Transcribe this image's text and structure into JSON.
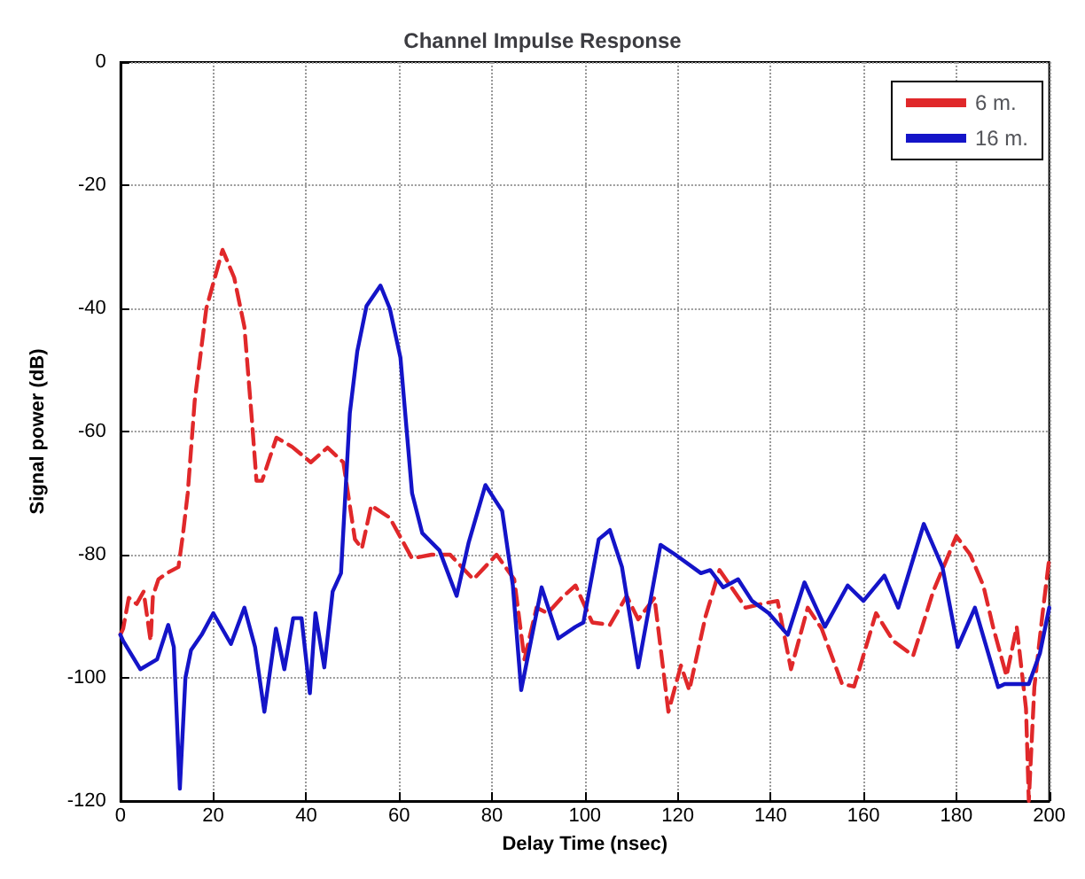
{
  "chart_data": {
    "type": "line",
    "title": "Channel Impulse Response",
    "xlabel": "Delay Time (nsec)",
    "ylabel": "Signal power (dB)",
    "xlim": [
      0,
      200
    ],
    "xticks": [
      0,
      20,
      40,
      60,
      80,
      100,
      120,
      140,
      160,
      180,
      200
    ],
    "ylim": [
      -120,
      0
    ],
    "yticks": [
      -120,
      -100,
      -80,
      -60,
      -40,
      -20,
      0
    ],
    "grid": true,
    "legend": "top right",
    "marker": "none",
    "series": [
      {
        "name": "6 m.",
        "color": "#e0282a",
        "line_style": "dashed",
        "x": [
          0,
          0.6,
          1.8,
          3.5,
          5,
          6.5,
          7,
          8.2,
          10,
          12.5,
          13.5,
          14.5,
          16,
          18.5,
          22,
          24.5,
          26.7,
          28.3,
          29.3,
          30.5,
          33.6,
          37,
          41,
          44.6,
          48,
          50.5,
          52,
          54,
          58,
          62.8,
          67,
          71,
          76,
          81,
          84.8,
          87,
          89.6,
          92,
          95,
          98,
          101.6,
          105.4,
          109,
          111.5,
          115,
          118,
          120.7,
          122.5,
          126,
          129,
          134.6,
          138,
          141.5,
          144.4,
          148,
          151,
          155.4,
          158,
          162.7,
          166.4,
          170.7,
          175,
          180,
          183,
          185.8,
          188,
          190.8,
          193,
          195,
          195.6,
          196.8,
          198.5,
          200
        ],
        "values": [
          -93,
          -92,
          -87,
          -88,
          -86,
          -94,
          -86.7,
          -84,
          -83,
          -82,
          -76.5,
          -70,
          -55,
          -40,
          -30.5,
          -35,
          -43,
          -58,
          -68,
          -68,
          -61,
          -62.5,
          -65,
          -62.6,
          -65,
          -77.5,
          -79,
          -72,
          -74,
          -80.6,
          -80,
          -80,
          -84,
          -80,
          -84,
          -97,
          -88.6,
          -89.5,
          -87,
          -85,
          -91,
          -91.4,
          -86.7,
          -90.5,
          -87,
          -105.5,
          -98,
          -102,
          -90,
          -82.5,
          -88.6,
          -88,
          -87.5,
          -98.6,
          -88.6,
          -92,
          -101,
          -101.4,
          -89.5,
          -94,
          -96.4,
          -86,
          -77,
          -80,
          -85,
          -92,
          -99.7,
          -91.7,
          -105,
          -120,
          -101.5,
          -90,
          -80.6
        ]
      },
      {
        "name": "16 m.",
        "color": "#1414c8",
        "line_style": "solid",
        "x": [
          0,
          0.6,
          4.3,
          7.9,
          10.3,
          11.5,
          12.8,
          14,
          15.2,
          17.5,
          20,
          23.8,
          26.7,
          29,
          31,
          33.5,
          35.3,
          37.2,
          39,
          40.8,
          42,
          43.9,
          45.7,
          47.5,
          49.4,
          51,
          53,
          56,
          58,
          60.3,
          62.8,
          65,
          68.7,
          72.4,
          75,
          78.6,
          82.2,
          84.5,
          86.3,
          88.4,
          90.7,
          94.3,
          98,
          99.7,
          103,
          105.4,
          108,
          111.5,
          116.3,
          119.5,
          125,
          127,
          129.8,
          133,
          136,
          139.6,
          143.7,
          147.3,
          151.7,
          156.6,
          160,
          164.5,
          167.5,
          173,
          177,
          180.3,
          184,
          189,
          190.4,
          195.6,
          198,
          200
        ],
        "values": [
          -93,
          -94,
          -98.6,
          -97,
          -91.4,
          -95,
          -118,
          -100,
          -95.5,
          -93,
          -89.5,
          -94.5,
          -88.6,
          -95,
          -105.5,
          -92,
          -98.6,
          -90.3,
          -90.3,
          -102.5,
          -89.5,
          -98.3,
          -86,
          -83,
          -57,
          -47,
          -39.6,
          -36.3,
          -40,
          -48,
          -70,
          -76.5,
          -79.3,
          -86.7,
          -78,
          -68.7,
          -72.9,
          -85,
          -102,
          -94,
          -85.3,
          -93.6,
          -91.7,
          -91,
          -77.5,
          -76,
          -82,
          -98.3,
          -78.4,
          -80,
          -83,
          -82.5,
          -85.3,
          -84,
          -87.5,
          -89.5,
          -93,
          -84.5,
          -91.7,
          -85,
          -87.5,
          -83.4,
          -88.6,
          -75,
          -82,
          -95,
          -88.6,
          -101.5,
          -101,
          -101,
          -96,
          -88.6
        ]
      }
    ]
  }
}
